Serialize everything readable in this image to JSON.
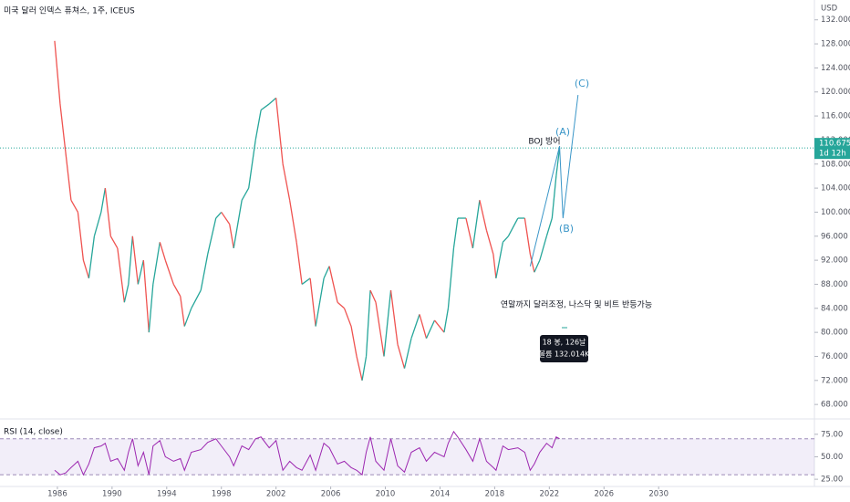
{
  "chart_data": [
    {
      "type": "line",
      "title": "미국 달러 인덱스 퓨쳐스, 1주, ICEUS",
      "currency": "USD",
      "up_color": "#26a69a",
      "down_color": "#ef5350",
      "x": [
        1985.8,
        1986.2,
        1986.6,
        1987.0,
        1987.5,
        1987.9,
        1988.3,
        1988.7,
        1989.2,
        1989.5,
        1989.9,
        1990.4,
        1990.9,
        1991.2,
        1991.5,
        1991.9,
        1992.3,
        1992.7,
        1993.0,
        1993.5,
        1993.9,
        1994.5,
        1995.0,
        1995.3,
        1995.8,
        1996.5,
        1997.0,
        1997.6,
        1998.0,
        1998.6,
        1998.9,
        1999.5,
        2000.0,
        2000.5,
        2000.9,
        2001.5,
        2002.0,
        2002.5,
        2003.0,
        2003.5,
        2003.9,
        2004.5,
        2004.9,
        2005.5,
        2005.9,
        2006.5,
        2007.0,
        2007.5,
        2007.9,
        2008.3,
        2008.6,
        2008.9,
        2009.3,
        2009.9,
        2010.4,
        2010.9,
        2011.4,
        2011.9,
        2012.5,
        2013.0,
        2013.6,
        2014.3,
        2014.6,
        2015.0,
        2015.3,
        2015.9,
        2016.4,
        2016.9,
        2017.4,
        2017.9,
        2018.1,
        2018.6,
        2019.0,
        2019.7,
        2020.2,
        2020.6,
        2020.9,
        2021.3,
        2021.8,
        2022.2,
        2022.5,
        2022.75
      ],
      "values": [
        128.5,
        118,
        110,
        102,
        100,
        92,
        89,
        96,
        100,
        104,
        96,
        94,
        85,
        88,
        96,
        88,
        92,
        80,
        88,
        95,
        92,
        88,
        86,
        81,
        84,
        87,
        93,
        99,
        100,
        98,
        94,
        102,
        104,
        112,
        117,
        118,
        119,
        108,
        102,
        95,
        88,
        89,
        81,
        89,
        91,
        85,
        84,
        81,
        76,
        72,
        76,
        87,
        85,
        76,
        87,
        78,
        74,
        79,
        83,
        79,
        82,
        80,
        84,
        94,
        99,
        99,
        94,
        102,
        97,
        93,
        89,
        95,
        96,
        99,
        99,
        93,
        90,
        92,
        96,
        99,
        106,
        110.675
      ],
      "last_price": 110.675,
      "countdown": "1d 12h",
      "xlim": [
        1981.8,
        2041.4
      ],
      "xticks": [
        1986,
        1990,
        1994,
        1998,
        2002,
        2006,
        2010,
        2014,
        2018,
        2022,
        2026,
        2030
      ],
      "ylim": [
        66.2,
        135.3
      ],
      "yticks": [
        {
          "value": 68,
          "label": "68.000"
        },
        {
          "value": 72,
          "label": "72.000"
        },
        {
          "value": 76,
          "label": "76.000"
        },
        {
          "value": 80,
          "label": "80.000"
        },
        {
          "value": 84,
          "label": "84.000"
        },
        {
          "value": 88,
          "label": "88.000"
        },
        {
          "value": 92,
          "label": "92.000"
        },
        {
          "value": 96,
          "label": "96.000"
        },
        {
          "value": 100,
          "label": "100.000"
        },
        {
          "value": 104,
          "label": "104.000"
        },
        {
          "value": 108,
          "label": "108.000"
        },
        {
          "value": 112,
          "label": "112.000"
        },
        {
          "value": 116,
          "label": "116.000"
        },
        {
          "value": 120,
          "label": "120.000"
        },
        {
          "value": 124,
          "label": "124.000"
        },
        {
          "value": 128,
          "label": "128.000"
        },
        {
          "value": 132,
          "label": "132.000"
        }
      ],
      "wave": {
        "color": "#3a96c8",
        "x": [
          2020.6,
          2022.75,
          2023.0,
          2024.1
        ],
        "values": [
          91,
          111,
          99,
          119.5
        ]
      },
      "wave_labels": [
        "(C)",
        "(A)",
        "(B)"
      ],
      "notes": [
        "BOJ 방어",
        "연말까지 달러조정, 나스닥 및 비트 반등가능"
      ],
      "tooltip": [
        "18 봉, 126날",
        "볼륨 132.014K"
      ]
    },
    {
      "type": "line",
      "title": "RSI (14, close)",
      "color": "#9c27b0",
      "x": [
        1985.8,
        1986.2,
        1986.6,
        1987.0,
        1987.5,
        1987.9,
        1988.3,
        1988.7,
        1989.2,
        1989.5,
        1989.9,
        1990.4,
        1990.9,
        1991.2,
        1991.5,
        1991.9,
        1992.3,
        1992.7,
        1993.0,
        1993.5,
        1993.9,
        1994.5,
        1995.0,
        1995.3,
        1995.8,
        1996.5,
        1997.0,
        1997.6,
        1998.0,
        1998.6,
        1998.9,
        1999.5,
        2000.0,
        2000.5,
        2000.9,
        2001.5,
        2002.0,
        2002.5,
        2003.0,
        2003.5,
        2003.9,
        2004.5,
        2004.9,
        2005.5,
        2005.9,
        2006.5,
        2007.0,
        2007.5,
        2007.9,
        2008.3,
        2008.6,
        2008.9,
        2009.3,
        2009.9,
        2010.4,
        2010.9,
        2011.4,
        2011.9,
        2012.5,
        2013.0,
        2013.6,
        2014.3,
        2014.6,
        2015.0,
        2015.3,
        2015.9,
        2016.4,
        2016.9,
        2017.4,
        2017.9,
        2018.1,
        2018.6,
        2019.0,
        2019.7,
        2020.2,
        2020.6,
        2020.9,
        2021.3,
        2021.8,
        2022.2,
        2022.5,
        2022.75
      ],
      "values": [
        35,
        30,
        32,
        38,
        45,
        30,
        42,
        60,
        62,
        65,
        45,
        48,
        35,
        55,
        70,
        40,
        55,
        30,
        62,
        68,
        50,
        45,
        48,
        35,
        55,
        58,
        66,
        70,
        62,
        50,
        40,
        62,
        58,
        70,
        72,
        60,
        68,
        35,
        45,
        38,
        35,
        52,
        35,
        65,
        60,
        42,
        45,
        38,
        35,
        30,
        55,
        72,
        45,
        35,
        70,
        40,
        33,
        55,
        60,
        45,
        55,
        50,
        65,
        78,
        72,
        58,
        45,
        70,
        45,
        38,
        35,
        62,
        58,
        60,
        55,
        35,
        42,
        55,
        65,
        60,
        72,
        70
      ],
      "band": [
        30,
        70
      ],
      "ylim": [
        18,
        89
      ],
      "yticks": [
        {
          "value": 25,
          "label": "25.00"
        },
        {
          "value": 50,
          "label": "50.00"
        },
        {
          "value": 75,
          "label": "75.00"
        }
      ]
    }
  ]
}
